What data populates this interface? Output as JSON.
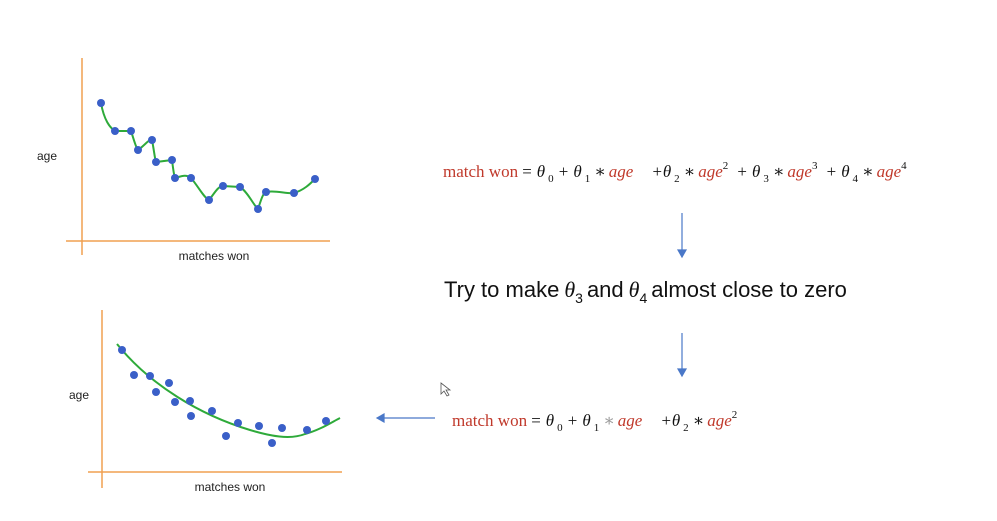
{
  "plots": [
    {
      "y_label": "age",
      "x_label": "matches won"
    },
    {
      "y_label": "age",
      "x_label": "matches won"
    }
  ],
  "formula_top": [
    "match won",
    "= θ",
    "0",
    "+ θ",
    "1",
    "∗",
    "age",
    "+θ",
    "2",
    "∗",
    "age",
    "2",
    "+ θ",
    "3",
    "∗",
    "age",
    "3",
    "+ θ",
    "4",
    "∗",
    "age",
    "4"
  ],
  "instruction": [
    "Try to make",
    "θ",
    "3",
    "and",
    "θ",
    "4",
    "almost close to zero"
  ],
  "formula_bottom": [
    "match won",
    "= θ",
    "0",
    "+ θ",
    "1",
    "∗",
    "age",
    "+θ",
    "2",
    "∗",
    "age",
    "2"
  ]
}
